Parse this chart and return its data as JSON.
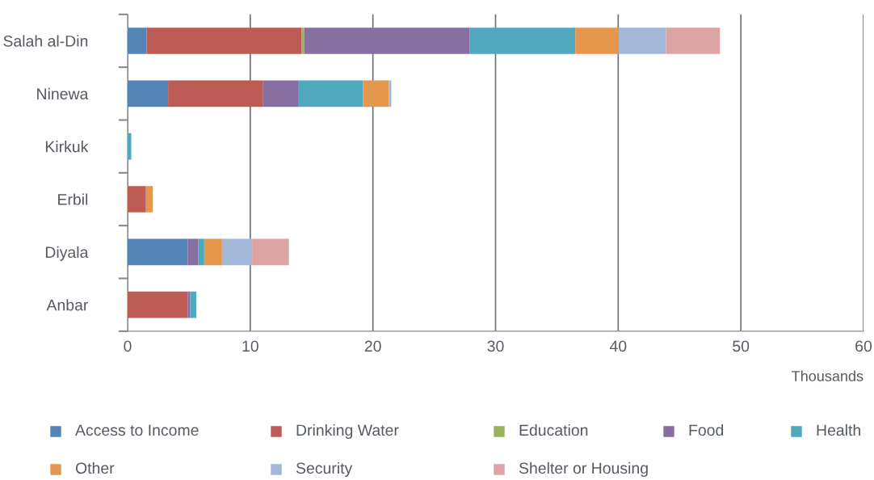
{
  "chart_data": {
    "type": "bar",
    "orientation": "horizontal",
    "stacked": true,
    "categories": [
      "Salah al-Din",
      "Ninewa",
      "Kirkuk",
      "Erbil",
      "Diyala",
      "Anbar"
    ],
    "series": [
      {
        "name": "Access to Income",
        "color": "#5584b8",
        "values": [
          1.55,
          3.3,
          null,
          null,
          4.9,
          null
        ]
      },
      {
        "name": "Drinking Water",
        "color": "#bc5c55",
        "values": [
          12.65,
          7.75,
          null,
          1.5,
          null,
          4.9
        ]
      },
      {
        "name": "Education",
        "color": "#9bb25f",
        "values": [
          0.2,
          null,
          null,
          null,
          null,
          null
        ]
      },
      {
        "name": "Food",
        "color": "#876fa1",
        "values": [
          13.5,
          2.85,
          null,
          null,
          0.85,
          0.2
        ]
      },
      {
        "name": "Health",
        "color": "#4fa8bd",
        "values": [
          8.6,
          5.3,
          0.3,
          null,
          0.5,
          0.5
        ]
      },
      {
        "name": "Other",
        "color": "#e5974d",
        "values": [
          3.5,
          2.1,
          null,
          0.55,
          1.45,
          null
        ]
      },
      {
        "name": "Security",
        "color": "#a3b7d8",
        "values": [
          3.9,
          0.2,
          null,
          null,
          2.45,
          null
        ]
      },
      {
        "name": "Shelter or Housing",
        "color": "#dca5a4",
        "values": [
          4.4,
          null,
          null,
          null,
          3.0,
          null
        ]
      }
    ],
    "xlim": [
      0,
      60
    ],
    "xticks": [
      0,
      10,
      20,
      30,
      40,
      50,
      60
    ],
    "xlabel": "Thousands",
    "grid": "x",
    "legend": "bottom"
  }
}
